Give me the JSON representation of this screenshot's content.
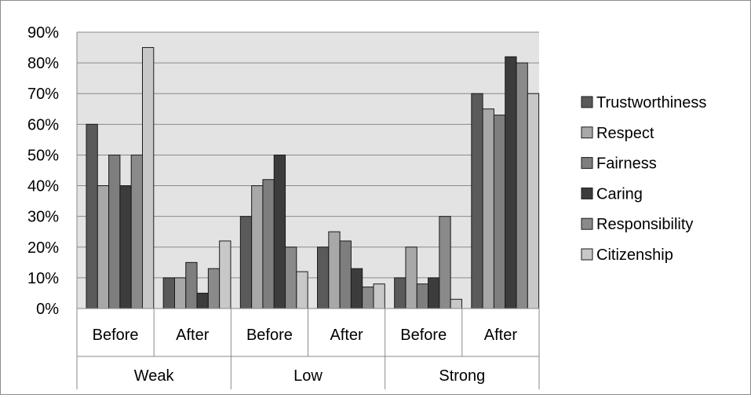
{
  "chart_data": {
    "type": "bar",
    "categories": [
      {
        "group": "Weak",
        "label": "Before"
      },
      {
        "group": "Weak",
        "label": "After"
      },
      {
        "group": "Low",
        "label": "Before"
      },
      {
        "group": "Low",
        "label": "After"
      },
      {
        "group": "Strong",
        "label": "Before"
      },
      {
        "group": "Strong",
        "label": "After"
      }
    ],
    "groups": [
      "Weak",
      "Low",
      "Strong"
    ],
    "series": [
      {
        "name": "Trustworthiness",
        "color": "#5a5a5a",
        "values": [
          60,
          10,
          30,
          20,
          10,
          70
        ]
      },
      {
        "name": "Respect",
        "color": "#a8a8a8",
        "values": [
          40,
          10,
          40,
          25,
          20,
          65
        ]
      },
      {
        "name": "Fairness",
        "color": "#7e7e7e",
        "values": [
          50,
          15,
          42,
          22,
          8,
          63
        ]
      },
      {
        "name": "Caring",
        "color": "#3c3c3c",
        "values": [
          40,
          5,
          50,
          13,
          10,
          82
        ]
      },
      {
        "name": "Responsibility",
        "color": "#8a8a8a",
        "values": [
          50,
          13,
          20,
          7,
          30,
          80
        ]
      },
      {
        "name": "Citizenship",
        "color": "#c8c8c8",
        "values": [
          85,
          22,
          12,
          8,
          3,
          70
        ]
      }
    ],
    "yticks": [
      "0%",
      "10%",
      "20%",
      "30%",
      "40%",
      "50%",
      "60%",
      "70%",
      "80%",
      "90%"
    ],
    "ylim": [
      0,
      90
    ],
    "grid": true,
    "plot_background": "#e3e3e3",
    "legend_position": "right",
    "title": "",
    "xlabel": "",
    "ylabel": ""
  }
}
